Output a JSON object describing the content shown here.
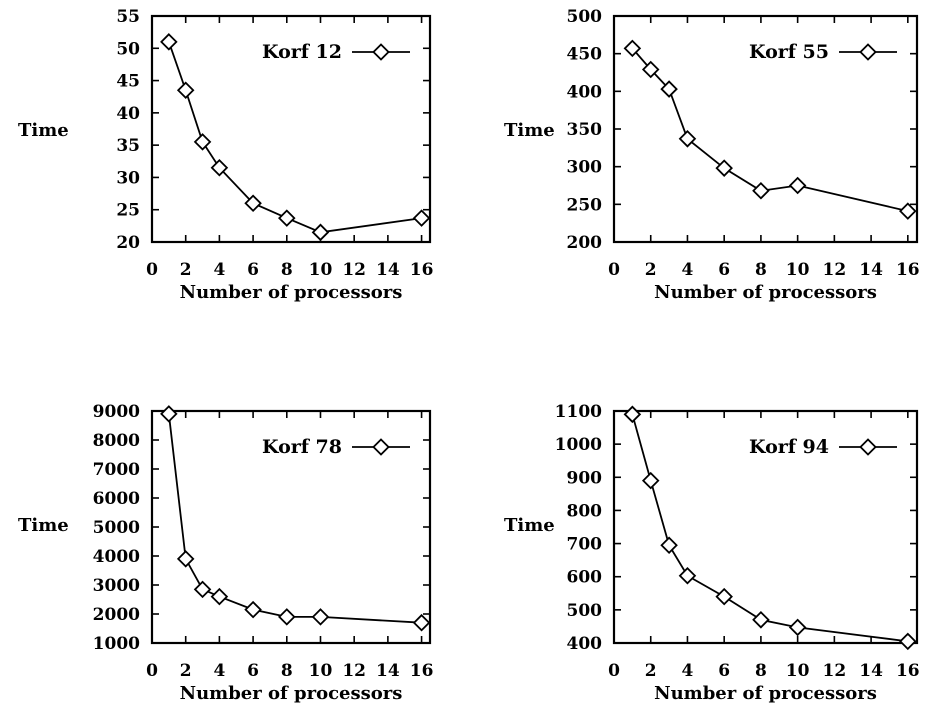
{
  "chart_data": [
    {
      "type": "line",
      "xlabel": "Number of processors",
      "ylabel": "Time",
      "x_ticks": [
        0,
        2,
        4,
        6,
        8,
        10,
        12,
        14,
        16
      ],
      "y_ticks": [
        20,
        25,
        30,
        35,
        40,
        45,
        50,
        55
      ],
      "xlim": [
        0,
        16.5
      ],
      "ylim": [
        20,
        55
      ],
      "legend_position": "top-right",
      "series": [
        {
          "name": "Korf 12",
          "x": [
            1,
            2,
            3,
            4,
            6,
            8,
            10,
            16
          ],
          "y": [
            51,
            43.5,
            35.5,
            31.5,
            26,
            23.7,
            21.5,
            23.7
          ]
        }
      ]
    },
    {
      "type": "line",
      "xlabel": "Number of processors",
      "ylabel": "Time",
      "x_ticks": [
        0,
        2,
        4,
        6,
        8,
        10,
        12,
        14,
        16
      ],
      "y_ticks": [
        200,
        250,
        300,
        350,
        400,
        450,
        500
      ],
      "xlim": [
        0,
        16.5
      ],
      "ylim": [
        200,
        500
      ],
      "legend_position": "top-right",
      "series": [
        {
          "name": "Korf 55",
          "x": [
            1,
            2,
            3,
            4,
            6,
            8,
            10,
            16
          ],
          "y": [
            457,
            429,
            403,
            337,
            298,
            268,
            275,
            241
          ]
        }
      ]
    },
    {
      "type": "line",
      "xlabel": "Number of processors",
      "ylabel": "Time",
      "x_ticks": [
        0,
        2,
        4,
        6,
        8,
        10,
        12,
        14,
        16
      ],
      "y_ticks": [
        1000,
        2000,
        3000,
        4000,
        5000,
        6000,
        7000,
        8000,
        9000
      ],
      "xlim": [
        0,
        16.5
      ],
      "ylim": [
        1000,
        9000
      ],
      "legend_position": "top-right",
      "series": [
        {
          "name": "Korf 78",
          "x": [
            1,
            2,
            3,
            4,
            6,
            8,
            10,
            16
          ],
          "y": [
            8900,
            3900,
            2850,
            2600,
            2150,
            1900,
            1900,
            1700
          ]
        }
      ]
    },
    {
      "type": "line",
      "xlabel": "Number of processors",
      "ylabel": "Time",
      "x_ticks": [
        0,
        2,
        4,
        6,
        8,
        10,
        12,
        14,
        16
      ],
      "y_ticks": [
        400,
        500,
        600,
        700,
        800,
        900,
        1000,
        1100
      ],
      "xlim": [
        0,
        16.5
      ],
      "ylim": [
        400,
        1100
      ],
      "legend_position": "top-right",
      "series": [
        {
          "name": "Korf 94",
          "x": [
            1,
            2,
            3,
            4,
            6,
            8,
            10,
            16
          ],
          "y": [
            1090,
            890,
            695,
            603,
            540,
            470,
            447,
            405
          ]
        }
      ]
    }
  ]
}
